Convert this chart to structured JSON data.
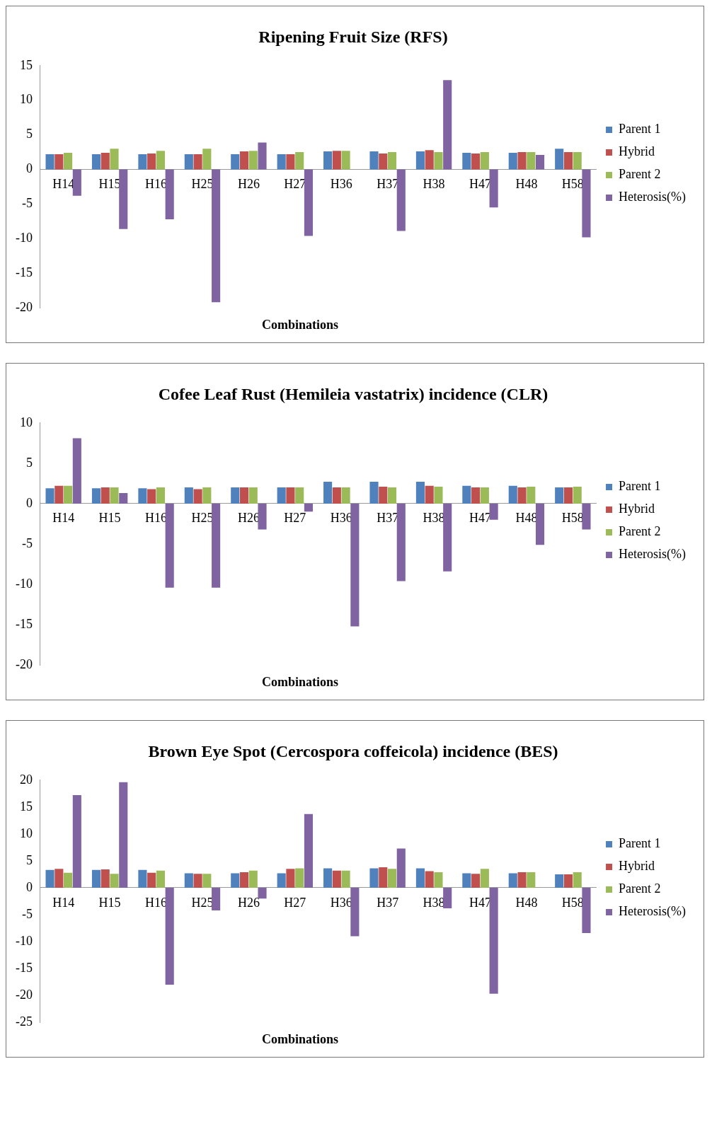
{
  "chart_data": [
    {
      "type": "bar",
      "title": "Ripening Fruit Size (RFS)",
      "xlabel": "Combinations",
      "legend": "right",
      "categories": [
        "H14",
        "H15",
        "H16",
        "H25",
        "H26",
        "H27",
        "H36",
        "H37",
        "H38",
        "H47",
        "H48",
        "H58"
      ],
      "ylim": [
        -20,
        15
      ],
      "yticks": [
        -20,
        -15,
        -10,
        -5,
        0,
        5,
        10,
        15
      ],
      "series": [
        {
          "name": "Parent 1",
          "color": "#4f81bd",
          "values": [
            2.2,
            2.2,
            2.2,
            2.2,
            2.2,
            2.2,
            2.6,
            2.6,
            2.6,
            2.4,
            2.4,
            3.0
          ]
        },
        {
          "name": "Hybrid",
          "color": "#c0504d",
          "values": [
            2.2,
            2.4,
            2.3,
            2.2,
            2.6,
            2.2,
            2.7,
            2.3,
            2.8,
            2.3,
            2.5,
            2.5
          ]
        },
        {
          "name": "Parent 2",
          "color": "#9bbb59",
          "values": [
            2.4,
            3.0,
            2.7,
            3.0,
            2.7,
            2.5,
            2.7,
            2.5,
            2.5,
            2.5,
            2.5,
            2.5
          ]
        },
        {
          "name": "Heterosis(%)",
          "color": "#8064a2",
          "values": [
            -3.8,
            -8.6,
            -7.2,
            -19.2,
            3.9,
            -9.6,
            null,
            -8.9,
            12.9,
            -5.5,
            2.1,
            -9.8
          ]
        }
      ]
    },
    {
      "type": "bar",
      "title": "Cofee Leaf Rust (Hemileia vastatrix) incidence (CLR)",
      "xlabel": "Combinations",
      "legend": "right",
      "categories": [
        "H14",
        "H15",
        "H16",
        "H25",
        "H26",
        "H27",
        "H36",
        "H37",
        "H38",
        "H47",
        "H48",
        "H58"
      ],
      "ylim": [
        -20,
        10
      ],
      "yticks": [
        -20,
        -15,
        -10,
        -5,
        0,
        5,
        10
      ],
      "series": [
        {
          "name": "Parent 1",
          "color": "#4f81bd",
          "values": [
            1.9,
            1.9,
            1.9,
            2.0,
            2.0,
            2.0,
            2.7,
            2.7,
            2.7,
            2.2,
            2.2,
            2.0
          ]
        },
        {
          "name": "Hybrid",
          "color": "#c0504d",
          "values": [
            2.2,
            2.0,
            1.8,
            1.8,
            2.0,
            2.0,
            2.0,
            2.1,
            2.2,
            2.0,
            2.0,
            2.0
          ]
        },
        {
          "name": "Parent 2",
          "color": "#9bbb59",
          "values": [
            2.2,
            2.0,
            2.0,
            2.0,
            2.0,
            2.0,
            2.0,
            2.0,
            2.1,
            2.0,
            2.1,
            2.1
          ]
        },
        {
          "name": "Heterosis(%)",
          "color": "#8064a2",
          "values": [
            8.1,
            1.3,
            -10.4,
            -10.4,
            -3.2,
            -1.0,
            -15.2,
            -9.6,
            -8.4,
            -2.0,
            -5.1,
            -3.2
          ]
        }
      ]
    },
    {
      "type": "bar",
      "title": "Brown Eye Spot (Cercospora coffeicola) incidence (BES)",
      "xlabel": "Combinations",
      "legend": "right",
      "categories": [
        "H14",
        "H15",
        "H16",
        "H25",
        "H26",
        "H27",
        "H36",
        "H37",
        "H38",
        "H47",
        "H48",
        "H58"
      ],
      "ylim": [
        -25,
        20
      ],
      "yticks": [
        -25,
        -20,
        -15,
        -10,
        -5,
        0,
        5,
        10,
        15,
        20
      ],
      "series": [
        {
          "name": "Parent 1",
          "color": "#4f81bd",
          "values": [
            3.3,
            3.3,
            3.3,
            2.7,
            2.7,
            2.7,
            3.6,
            3.6,
            3.6,
            2.7,
            2.7,
            2.5
          ]
        },
        {
          "name": "Hybrid",
          "color": "#c0504d",
          "values": [
            3.5,
            3.4,
            2.8,
            2.6,
            2.9,
            3.5,
            3.2,
            3.8,
            3.1,
            2.6,
            2.9,
            2.5
          ]
        },
        {
          "name": "Parent 2",
          "color": "#9bbb59",
          "values": [
            2.8,
            2.6,
            3.2,
            2.6,
            3.2,
            3.6,
            3.2,
            3.5,
            2.9,
            3.5,
            2.9,
            2.9
          ]
        },
        {
          "name": "Heterosis(%)",
          "color": "#8064a2",
          "values": [
            17.2,
            19.6,
            -18.0,
            -4.2,
            -2.0,
            13.7,
            -9.0,
            7.3,
            -3.8,
            -19.7,
            null,
            -8.4
          ]
        }
      ]
    }
  ]
}
